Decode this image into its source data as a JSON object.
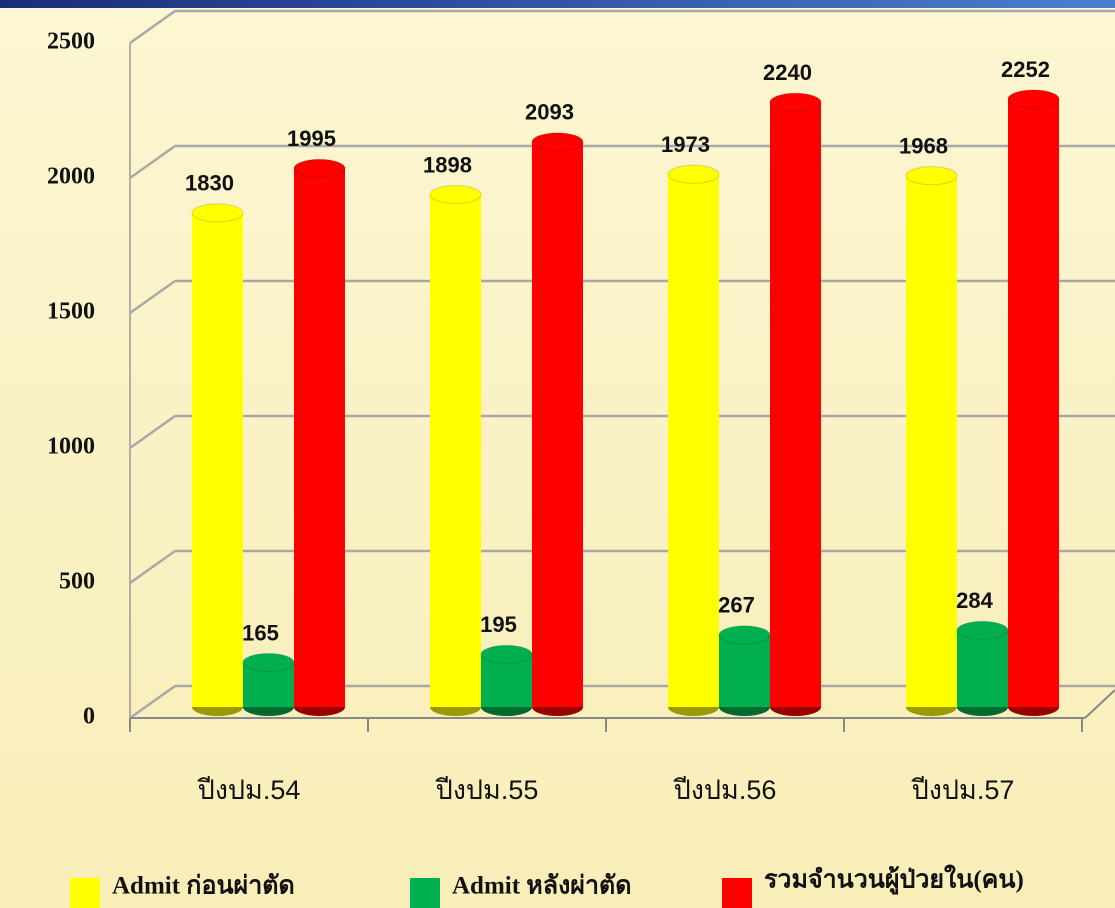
{
  "chart_data": {
    "type": "bar3d",
    "categories": [
      "ปีงปม.54",
      "ปีงปม.55",
      "ปีงปม.56",
      "ปีงปม.57"
    ],
    "series": [
      {
        "name": "Admit ก่อนผ่าตัด",
        "color": "#ffff00",
        "values": [
          1830,
          1898,
          1973,
          1968
        ]
      },
      {
        "name": "Admit หลังผ่าตัด",
        "color": "#00b050",
        "values": [
          165,
          195,
          267,
          284
        ]
      },
      {
        "name": "รวมจำนวนผู้ป่วยใน(คน)",
        "color": "#ff0000",
        "values": [
          1995,
          2093,
          2240,
          2252
        ]
      }
    ],
    "ylim": [
      0,
      2500
    ],
    "yticks": [
      0,
      500,
      1000,
      1500,
      2000,
      2500
    ],
    "grid": true
  }
}
